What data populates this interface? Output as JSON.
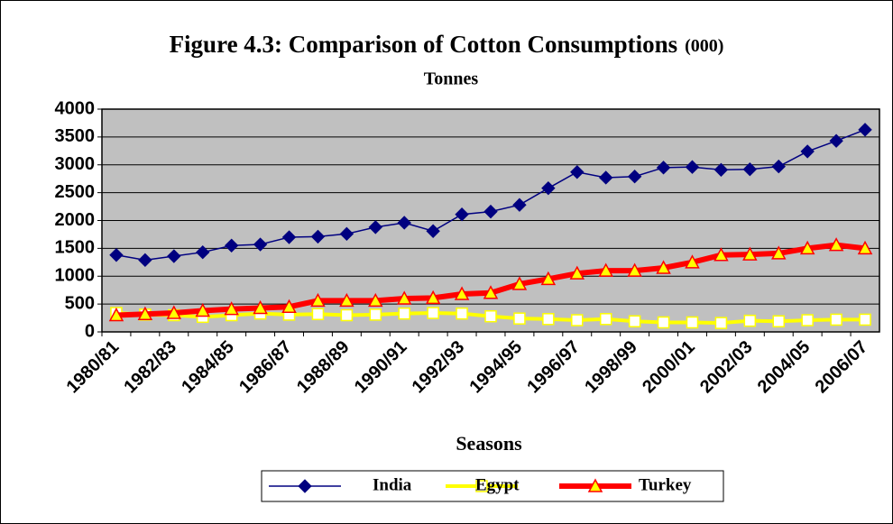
{
  "chart_data": {
    "type": "line",
    "title": "Figure 4.3: Comparison of Cotton Consumptions",
    "title_suffix": "(000)",
    "subtitle": "Tonnes",
    "x_label": "Seasons",
    "categories": [
      "1980/81",
      null,
      "1982/83",
      null,
      "1984/85",
      null,
      "1986/87",
      null,
      "1988/89",
      null,
      "1990/91",
      null,
      "1992/93",
      null,
      "1994/95",
      null,
      "1996/97",
      null,
      "1998/99",
      null,
      "2000/01",
      null,
      "2002/03",
      null,
      "2004/05",
      null,
      "2006/07"
    ],
    "series": [
      {
        "name": "India",
        "color": "#000080",
        "marker": "diamond",
        "values": [
          1380,
          1290,
          1360,
          1430,
          1550,
          1570,
          1700,
          1710,
          1760,
          1880,
          1960,
          1810,
          2110,
          2160,
          2280,
          2580,
          2870,
          2770,
          2790,
          2950,
          2960,
          2910,
          2920,
          2970,
          3240,
          3430,
          3630
        ]
      },
      {
        "name": "Egypt",
        "color": "#ffff00",
        "marker": "square",
        "values": [
          340,
          310,
          300,
          270,
          300,
          330,
          310,
          320,
          300,
          310,
          330,
          340,
          330,
          280,
          240,
          230,
          210,
          230,
          190,
          170,
          170,
          160,
          200,
          190,
          210,
          220,
          220
        ]
      },
      {
        "name": "Turkey",
        "color": "#ff0000",
        "marker": "triangle",
        "values": [
          300,
          320,
          340,
          380,
          410,
          430,
          450,
          560,
          560,
          560,
          600,
          610,
          680,
          700,
          860,
          950,
          1050,
          1100,
          1100,
          1150,
          1250,
          1380,
          1390,
          1410,
          1500,
          1560,
          1500
        ]
      }
    ],
    "ylim": [
      0,
      4000
    ],
    "yticks": [
      0,
      500,
      1000,
      1500,
      2000,
      2500,
      3000,
      3500,
      4000
    ],
    "grid": true,
    "plot_background": "#c0c0c0",
    "legend": "bottom"
  }
}
